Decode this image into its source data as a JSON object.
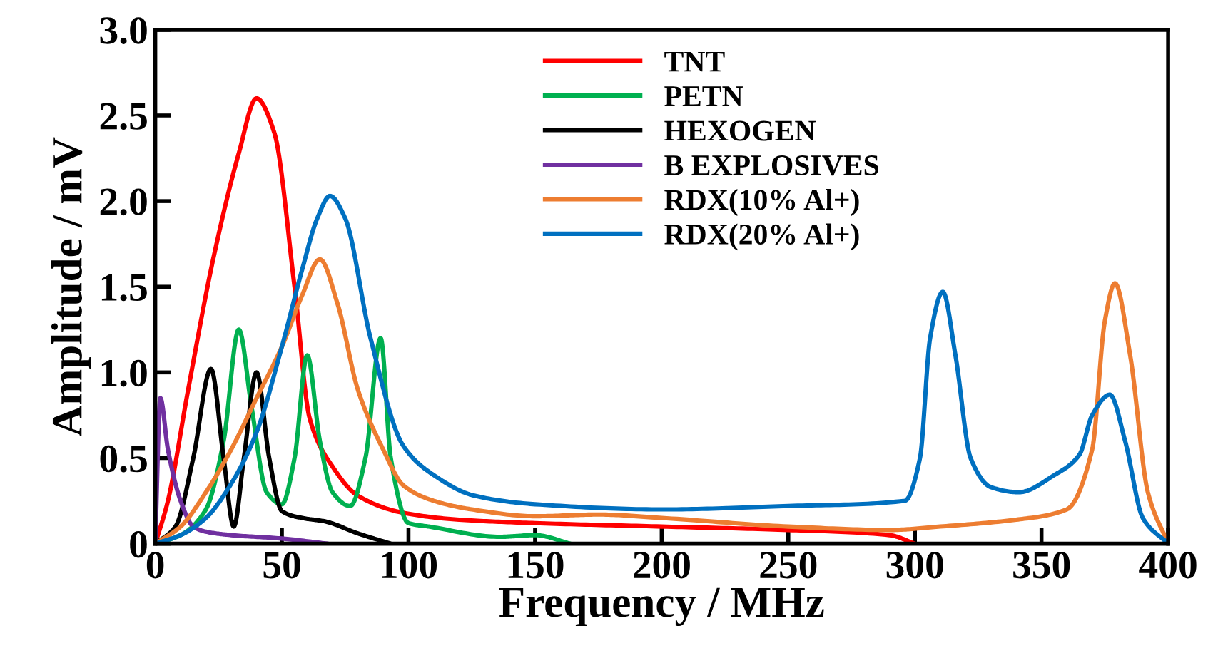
{
  "chart_data": {
    "type": "line",
    "xlabel": "Frequency / MHz",
    "ylabel": "Amplitude / mV",
    "xlim": [
      0,
      400
    ],
    "xticks": [
      0,
      50,
      100,
      150,
      200,
      250,
      300,
      350,
      400
    ],
    "ylim": [
      0,
      3.0
    ],
    "yticks": [
      0,
      0.5,
      {
        "value": 1.0,
        "label": "1.0"
      },
      1.5,
      {
        "value": 2.0,
        "label": "2.0"
      },
      2.5,
      {
        "value": 3.0,
        "label": "3.0"
      }
    ],
    "grid": false,
    "legend": "top",
    "marker": "none",
    "line_style": "solid",
    "series": [
      {
        "name": "TNT",
        "color": "#ff0000",
        "x": [
          0,
          5,
          13,
          23,
          33,
          40,
          47,
          55,
          61,
          70,
          80,
          98,
          120,
          150,
          200,
          250,
          290,
          300
        ],
        "values": [
          0,
          0.25,
          0.9,
          1.67,
          2.28,
          2.6,
          2.4,
          1.5,
          0.73,
          0.45,
          0.28,
          0.18,
          0.14,
          0.12,
          0.1,
          0.08,
          0.05,
          0
        ]
      },
      {
        "name": "PETN",
        "color": "#00b050",
        "x": [
          0,
          10,
          20,
          27,
          33,
          38,
          44,
          50,
          55,
          60,
          65,
          70,
          77,
          83,
          89,
          93,
          100,
          108,
          136,
          150,
          164
        ],
        "values": [
          0,
          0.05,
          0.2,
          0.6,
          1.25,
          0.8,
          0.3,
          0.23,
          0.5,
          1.1,
          0.6,
          0.3,
          0.22,
          0.5,
          1.2,
          0.5,
          0.12,
          0.1,
          0.04,
          0.05,
          0
        ]
      },
      {
        "name": "HEXOGEN",
        "color": "#000000",
        "x": [
          0,
          8,
          15,
          22,
          27,
          31,
          35,
          40,
          45,
          50,
          58,
          67,
          80,
          93
        ],
        "values": [
          0,
          0.1,
          0.5,
          1.02,
          0.5,
          0.1,
          0.5,
          1.0,
          0.5,
          0.19,
          0.15,
          0.13,
          0.06,
          0
        ]
      },
      {
        "name": "B EXPLOSIVES",
        "color": "#7030a0",
        "x": [
          0,
          2,
          5,
          10,
          15,
          20,
          30,
          50,
          68
        ],
        "values": [
          0,
          0.85,
          0.55,
          0.25,
          0.1,
          0.07,
          0.05,
          0.03,
          0
        ]
      },
      {
        "name": "RDX(10% Al+)",
        "color": "#ed7d31",
        "x": [
          0,
          10,
          20,
          30,
          40,
          50,
          58,
          65,
          72,
          80,
          90,
          98,
          110,
          125,
          150,
          175,
          200,
          250,
          290,
          310,
          340,
          360,
          370,
          375,
          379,
          385,
          392,
          400
        ],
        "values": [
          0,
          0.1,
          0.3,
          0.55,
          0.85,
          1.15,
          1.45,
          1.66,
          1.4,
          0.9,
          0.55,
          0.34,
          0.25,
          0.2,
          0.16,
          0.17,
          0.15,
          0.1,
          0.08,
          0.1,
          0.14,
          0.2,
          0.55,
          1.3,
          1.52,
          1.1,
          0.3,
          0
        ]
      },
      {
        "name": "RDX(20% Al+)",
        "color": "#0070c0",
        "x": [
          0,
          10,
          20,
          30,
          40,
          50,
          58,
          64,
          69,
          75,
          85,
          98,
          110,
          126,
          150,
          200,
          250,
          296,
          302,
          306,
          311,
          316,
          322,
          330,
          341,
          355,
          365,
          370,
          377,
          383,
          390,
          400
        ],
        "values": [
          0,
          0.05,
          0.15,
          0.35,
          0.65,
          1.15,
          1.6,
          1.9,
          2.03,
          1.9,
          1.2,
          0.57,
          0.4,
          0.28,
          0.23,
          0.2,
          0.22,
          0.25,
          0.5,
          1.2,
          1.47,
          1.1,
          0.5,
          0.33,
          0.3,
          0.4,
          0.52,
          0.75,
          0.87,
          0.6,
          0.15,
          0
        ]
      }
    ]
  }
}
